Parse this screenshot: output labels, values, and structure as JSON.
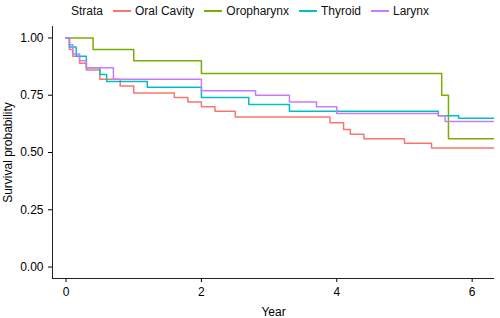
{
  "chart_data": {
    "type": "line",
    "legend_title": "Strata",
    "legend": "top",
    "x_label": "Year",
    "y_label": "Survival probability",
    "xlim": [
      -0.2,
      6.33
    ],
    "xticks": [
      0,
      2,
      4,
      6
    ],
    "ylim": [
      -0.05,
      1.05
    ],
    "yticks": [
      {
        "value": 0,
        "label": "0.00"
      },
      {
        "value": 0.25,
        "label": "0.25"
      },
      {
        "value": 0.5,
        "label": "0.50"
      },
      {
        "value": 0.75,
        "label": "0.75"
      },
      {
        "value": 1,
        "label": "1.00"
      }
    ],
    "line_style": "step",
    "series": [
      {
        "name": "Oral Cavity",
        "color": "#F8766D",
        "x": [
          0,
          0.05,
          0.1,
          0.2,
          0.3,
          0.5,
          0.8,
          1.0,
          1.6,
          1.8,
          2.0,
          2.2,
          2.5,
          3.9,
          4.1,
          4.2,
          4.4,
          5.0,
          5.4,
          6.33
        ],
        "values": [
          1.0,
          0.95,
          0.92,
          0.89,
          0.86,
          0.82,
          0.79,
          0.76,
          0.74,
          0.72,
          0.7,
          0.68,
          0.655,
          0.63,
          0.6,
          0.58,
          0.56,
          0.54,
          0.52,
          0.52
        ]
      },
      {
        "name": "Oropharynx",
        "color": "#7CAE00",
        "x": [
          0,
          0.4,
          1.0,
          2.0,
          5.55,
          5.65,
          6.33
        ],
        "values": [
          1.0,
          0.95,
          0.9,
          0.845,
          0.75,
          0.56,
          0.56
        ]
      },
      {
        "name": "Thyroid",
        "color": "#00BFC4",
        "x": [
          0,
          0.05,
          0.15,
          0.3,
          0.5,
          0.6,
          1.2,
          2.0,
          2.7,
          3.3,
          5.5,
          5.8,
          6.33
        ],
        "values": [
          1.0,
          0.96,
          0.92,
          0.87,
          0.84,
          0.81,
          0.785,
          0.74,
          0.71,
          0.68,
          0.66,
          0.65,
          0.65
        ]
      },
      {
        "name": "Larynx",
        "color": "#C77CFF",
        "x": [
          0,
          0.05,
          0.1,
          0.2,
          0.3,
          0.7,
          2.0,
          2.8,
          3.3,
          3.7,
          4.0,
          5.5,
          5.6,
          6.33
        ],
        "values": [
          1.0,
          0.97,
          0.93,
          0.9,
          0.87,
          0.82,
          0.77,
          0.75,
          0.72,
          0.7,
          0.67,
          0.66,
          0.635,
          0.635
        ]
      }
    ]
  }
}
